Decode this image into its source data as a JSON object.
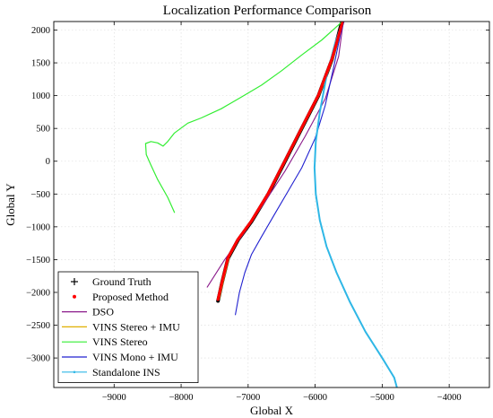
{
  "chart_data": {
    "type": "line",
    "title": "Localization Performance Comparison",
    "xlabel": "Global X",
    "ylabel": "Global Y",
    "xlim": [
      -9900,
      -3400
    ],
    "ylim": [
      -3450,
      2130
    ],
    "xticks": [
      -9000,
      -8000,
      -7000,
      -6000,
      -5000,
      -4000
    ],
    "xtick_labels": [
      "−9000",
      "−8000",
      "−7000",
      "−6000",
      "−5000",
      "−4000"
    ],
    "yticks": [
      2000,
      1500,
      1000,
      500,
      0,
      -500,
      -1000,
      -1500,
      -2000,
      -2500,
      -3000
    ],
    "ytick_labels": [
      "2000",
      "1500",
      "1000",
      "500",
      "0",
      "−500",
      "−1000",
      "−1500",
      "−2000",
      "−2500",
      "−3000"
    ],
    "grid": true,
    "legend_position": "bottom-left",
    "series": [
      {
        "name": "Ground Truth",
        "color": "#000000",
        "marker": "+",
        "points": [
          [
            -7450,
            -2130
          ],
          [
            -7390,
            -1850
          ],
          [
            -7300,
            -1480
          ],
          [
            -7150,
            -1200
          ],
          [
            -6950,
            -920
          ],
          [
            -6700,
            -500
          ],
          [
            -6450,
            0
          ],
          [
            -6200,
            500
          ],
          [
            -5950,
            1000
          ],
          [
            -5750,
            1550
          ],
          [
            -5600,
            2130
          ]
        ]
      },
      {
        "name": "Proposed Method",
        "color": "#ff0000",
        "marker": "dot",
        "points": [
          [
            -7450,
            -2110
          ],
          [
            -7390,
            -1840
          ],
          [
            -7300,
            -1470
          ],
          [
            -7150,
            -1190
          ],
          [
            -6950,
            -910
          ],
          [
            -6700,
            -490
          ],
          [
            -6450,
            10
          ],
          [
            -6200,
            510
          ],
          [
            -5950,
            1010
          ],
          [
            -5750,
            1560
          ],
          [
            -5590,
            2130
          ]
        ]
      },
      {
        "name": "DSO",
        "color": "#8b1a8b",
        "marker": "none",
        "points": [
          [
            -7610,
            -1920
          ],
          [
            -7350,
            -1500
          ],
          [
            -7050,
            -1080
          ],
          [
            -6750,
            -620
          ],
          [
            -6450,
            -150
          ],
          [
            -6150,
            380
          ],
          [
            -5850,
            950
          ],
          [
            -5650,
            1600
          ],
          [
            -5580,
            2130
          ]
        ]
      },
      {
        "name": "VINS Stereo + IMU",
        "color": "#e0b000",
        "marker": "none",
        "points": [
          [
            -7430,
            -2100
          ],
          [
            -7370,
            -1830
          ],
          [
            -7280,
            -1460
          ],
          [
            -7130,
            -1180
          ],
          [
            -6930,
            -900
          ],
          [
            -6680,
            -480
          ],
          [
            -6430,
            20
          ],
          [
            -6180,
            520
          ],
          [
            -5930,
            1020
          ],
          [
            -5730,
            1570
          ],
          [
            -5580,
            2130
          ]
        ]
      },
      {
        "name": "VINS Stereo",
        "color": "#33ee33",
        "marker": "none",
        "points": [
          [
            -8100,
            -780
          ],
          [
            -8200,
            -550
          ],
          [
            -8350,
            -280
          ],
          [
            -8450,
            -60
          ],
          [
            -8520,
            100
          ],
          [
            -8530,
            270
          ],
          [
            -8450,
            300
          ],
          [
            -8350,
            280
          ],
          [
            -8270,
            230
          ],
          [
            -8200,
            300
          ],
          [
            -8100,
            430
          ],
          [
            -7900,
            580
          ],
          [
            -7700,
            660
          ],
          [
            -7400,
            800
          ],
          [
            -7100,
            980
          ],
          [
            -6800,
            1160
          ],
          [
            -6500,
            1380
          ],
          [
            -6200,
            1620
          ],
          [
            -5900,
            1850
          ],
          [
            -5650,
            2080
          ],
          [
            -5600,
            2130
          ]
        ]
      },
      {
        "name": "VINS Mono + IMU",
        "color": "#2020d0",
        "marker": "none",
        "points": [
          [
            -7190,
            -2340
          ],
          [
            -7130,
            -2000
          ],
          [
            -7050,
            -1700
          ],
          [
            -6950,
            -1420
          ],
          [
            -6800,
            -1150
          ],
          [
            -6600,
            -800
          ],
          [
            -6400,
            -450
          ],
          [
            -6200,
            -100
          ],
          [
            -6000,
            350
          ],
          [
            -5850,
            850
          ],
          [
            -5720,
            1450
          ],
          [
            -5620,
            1950
          ],
          [
            -5570,
            2130
          ]
        ]
      },
      {
        "name": "Standalone INS",
        "color": "#2fb7e6",
        "marker": "dot",
        "points": [
          [
            -5590,
            2130
          ],
          [
            -5700,
            1800
          ],
          [
            -5830,
            1300
          ],
          [
            -5930,
            750
          ],
          [
            -5990,
            300
          ],
          [
            -6010,
            -100
          ],
          [
            -5990,
            -500
          ],
          [
            -5930,
            -900
          ],
          [
            -5830,
            -1300
          ],
          [
            -5680,
            -1700
          ],
          [
            -5480,
            -2150
          ],
          [
            -5250,
            -2600
          ],
          [
            -5000,
            -3000
          ],
          [
            -4820,
            -3300
          ],
          [
            -4780,
            -3450
          ]
        ]
      }
    ]
  }
}
